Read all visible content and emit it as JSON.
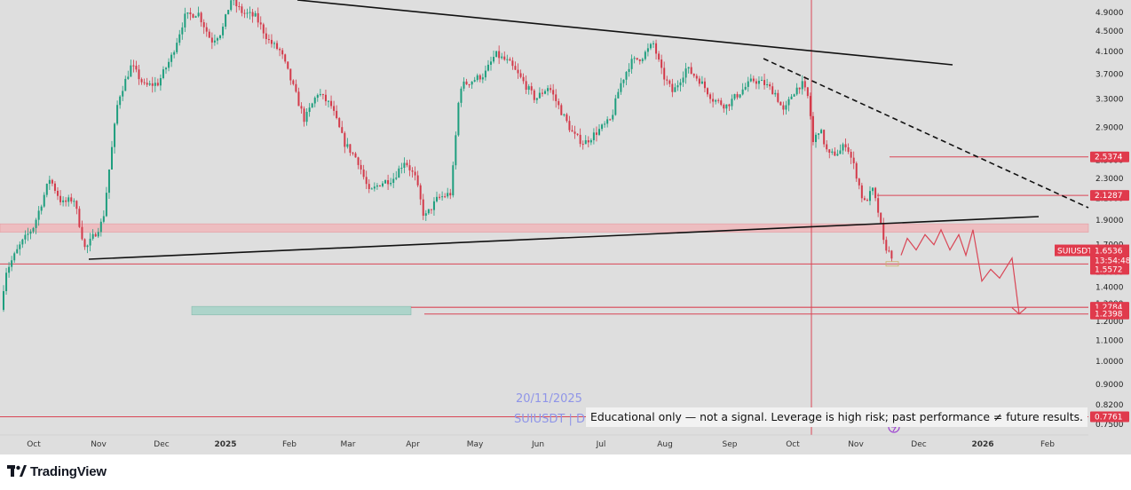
{
  "colors": {
    "background": "#dedede",
    "bull": "#1e9e7e",
    "bear": "#d33a4a",
    "level_line": "#d94555",
    "trendline": "#111111",
    "zone_red": "#f1b5b9",
    "zone_green": "#a8d4c8",
    "tag_red": "#e03a4c",
    "watermark": "#8f95e8"
  },
  "chart_data": {
    "type": "candlestick",
    "symbol": "SUIUSDT",
    "interval": "D",
    "y_scale": "log",
    "y_range": [
      0.73,
      5.3
    ],
    "y_ticks": [
      "4.9000",
      "4.5000",
      "4.1000",
      "3.7000",
      "3.3000",
      "2.9000",
      "2.5000",
      "2.3000",
      "2.1000",
      "1.9000",
      "1.7000",
      "1.5000",
      "1.4000",
      "1.3000",
      "1.2000",
      "1.1000",
      "1.0000",
      "0.9000",
      "0.8200",
      "0.7500"
    ],
    "x_labels": [
      {
        "text": "Oct",
        "bold": false
      },
      {
        "text": "Nov",
        "bold": false
      },
      {
        "text": "Dec",
        "bold": false
      },
      {
        "text": "2025",
        "bold": true
      },
      {
        "text": "Feb",
        "bold": false
      },
      {
        "text": "Mar",
        "bold": false
      },
      {
        "text": "Apr",
        "bold": false
      },
      {
        "text": "May",
        "bold": false
      },
      {
        "text": "Jun",
        "bold": false
      },
      {
        "text": "Jul",
        "bold": false
      },
      {
        "text": "Aug",
        "bold": false
      },
      {
        "text": "Sep",
        "bold": false
      },
      {
        "text": "Oct",
        "bold": false
      },
      {
        "text": "Nov",
        "bold": false
      },
      {
        "text": "Dec",
        "bold": false
      },
      {
        "text": "2026",
        "bold": true
      },
      {
        "text": "Feb",
        "bold": false
      }
    ],
    "price_path": [
      [
        0,
        1.14
      ],
      [
        8,
        1.5
      ],
      [
        25,
        1.7
      ],
      [
        40,
        1.85
      ],
      [
        58,
        2.3
      ],
      [
        72,
        2.05
      ],
      [
        85,
        2.1
      ],
      [
        98,
        1.66
      ],
      [
        110,
        1.8
      ],
      [
        118,
        1.9
      ],
      [
        125,
        2.4
      ],
      [
        135,
        3.3
      ],
      [
        150,
        3.85
      ],
      [
        165,
        3.5
      ],
      [
        180,
        3.55
      ],
      [
        195,
        4.0
      ],
      [
        210,
        4.8
      ],
      [
        225,
        4.9
      ],
      [
        240,
        4.3
      ],
      [
        252,
        4.5
      ],
      [
        262,
        5.2
      ],
      [
        275,
        4.9
      ],
      [
        290,
        4.8
      ],
      [
        305,
        4.3
      ],
      [
        318,
        4.1
      ],
      [
        332,
        3.5
      ],
      [
        345,
        3.0
      ],
      [
        360,
        3.4
      ],
      [
        375,
        3.2
      ],
      [
        390,
        2.7
      ],
      [
        405,
        2.5
      ],
      [
        418,
        2.15
      ],
      [
        430,
        2.25
      ],
      [
        445,
        2.3
      ],
      [
        458,
        2.5
      ],
      [
        470,
        2.3
      ],
      [
        480,
        1.92
      ],
      [
        495,
        2.1
      ],
      [
        510,
        2.15
      ],
      [
        520,
        3.5
      ],
      [
        535,
        3.6
      ],
      [
        548,
        3.7
      ],
      [
        560,
        4.05
      ],
      [
        575,
        3.9
      ],
      [
        590,
        3.6
      ],
      [
        605,
        3.3
      ],
      [
        620,
        3.5
      ],
      [
        635,
        3.1
      ],
      [
        648,
        2.8
      ],
      [
        660,
        2.7
      ],
      [
        675,
        2.85
      ],
      [
        690,
        3.0
      ],
      [
        700,
        3.5
      ],
      [
        712,
        3.9
      ],
      [
        725,
        4.0
      ],
      [
        738,
        4.25
      ],
      [
        748,
        3.7
      ],
      [
        760,
        3.4
      ],
      [
        775,
        3.8
      ],
      [
        790,
        3.6
      ],
      [
        805,
        3.3
      ],
      [
        820,
        3.2
      ],
      [
        835,
        3.4
      ],
      [
        850,
        3.6
      ],
      [
        862,
        3.55
      ],
      [
        875,
        3.4
      ],
      [
        885,
        3.1
      ],
      [
        895,
        3.4
      ],
      [
        905,
        3.55
      ],
      [
        913,
        3.3
      ],
      [
        918,
        2.7
      ],
      [
        925,
        2.9
      ],
      [
        935,
        2.55
      ],
      [
        948,
        2.6
      ],
      [
        955,
        2.7
      ],
      [
        965,
        2.4
      ],
      [
        975,
        2.05
      ],
      [
        985,
        2.18
      ],
      [
        992,
        1.95
      ],
      [
        997,
        1.72
      ],
      [
        1005,
        1.62
      ]
    ],
    "last_price": "1.6536",
    "countdown": "13:54:48",
    "price_labels": {
      "resistance_2": "2.5374",
      "resistance_1": "2.1287",
      "support_1": "1.5572",
      "target_1": "1.2784",
      "target_2": "1.2398",
      "low": "0.7761"
    },
    "levels": [
      2.5374,
      2.1287,
      1.5572,
      1.2784,
      1.2398,
      0.7761
    ],
    "zones": [
      {
        "kind": "resistance_zone",
        "y_low": 1.8,
        "y_high": 1.87
      },
      {
        "kind": "target_zone",
        "y_low": 1.2398,
        "y_high": 1.2784
      }
    ],
    "projection_path": [
      [
        1015,
        1.62
      ],
      [
        1022,
        1.75
      ],
      [
        1032,
        1.66
      ],
      [
        1042,
        1.78
      ],
      [
        1052,
        1.7
      ],
      [
        1060,
        1.82
      ],
      [
        1070,
        1.66
      ],
      [
        1080,
        1.78
      ],
      [
        1088,
        1.62
      ],
      [
        1096,
        1.82
      ],
      [
        1106,
        1.44
      ],
      [
        1116,
        1.52
      ],
      [
        1126,
        1.46
      ],
      [
        1140,
        1.6
      ],
      [
        1148,
        1.24
      ]
    ],
    "crosshair": {
      "date": "20/11/2025"
    }
  },
  "watermark": {
    "date": "20/11/2025",
    "symbol_line": "SUIUSDT | D"
  },
  "disclaimer": "Educational only — not a signal. Leverage is high risk; past performance ≠ future results.",
  "branding": {
    "name": "TradingView"
  }
}
